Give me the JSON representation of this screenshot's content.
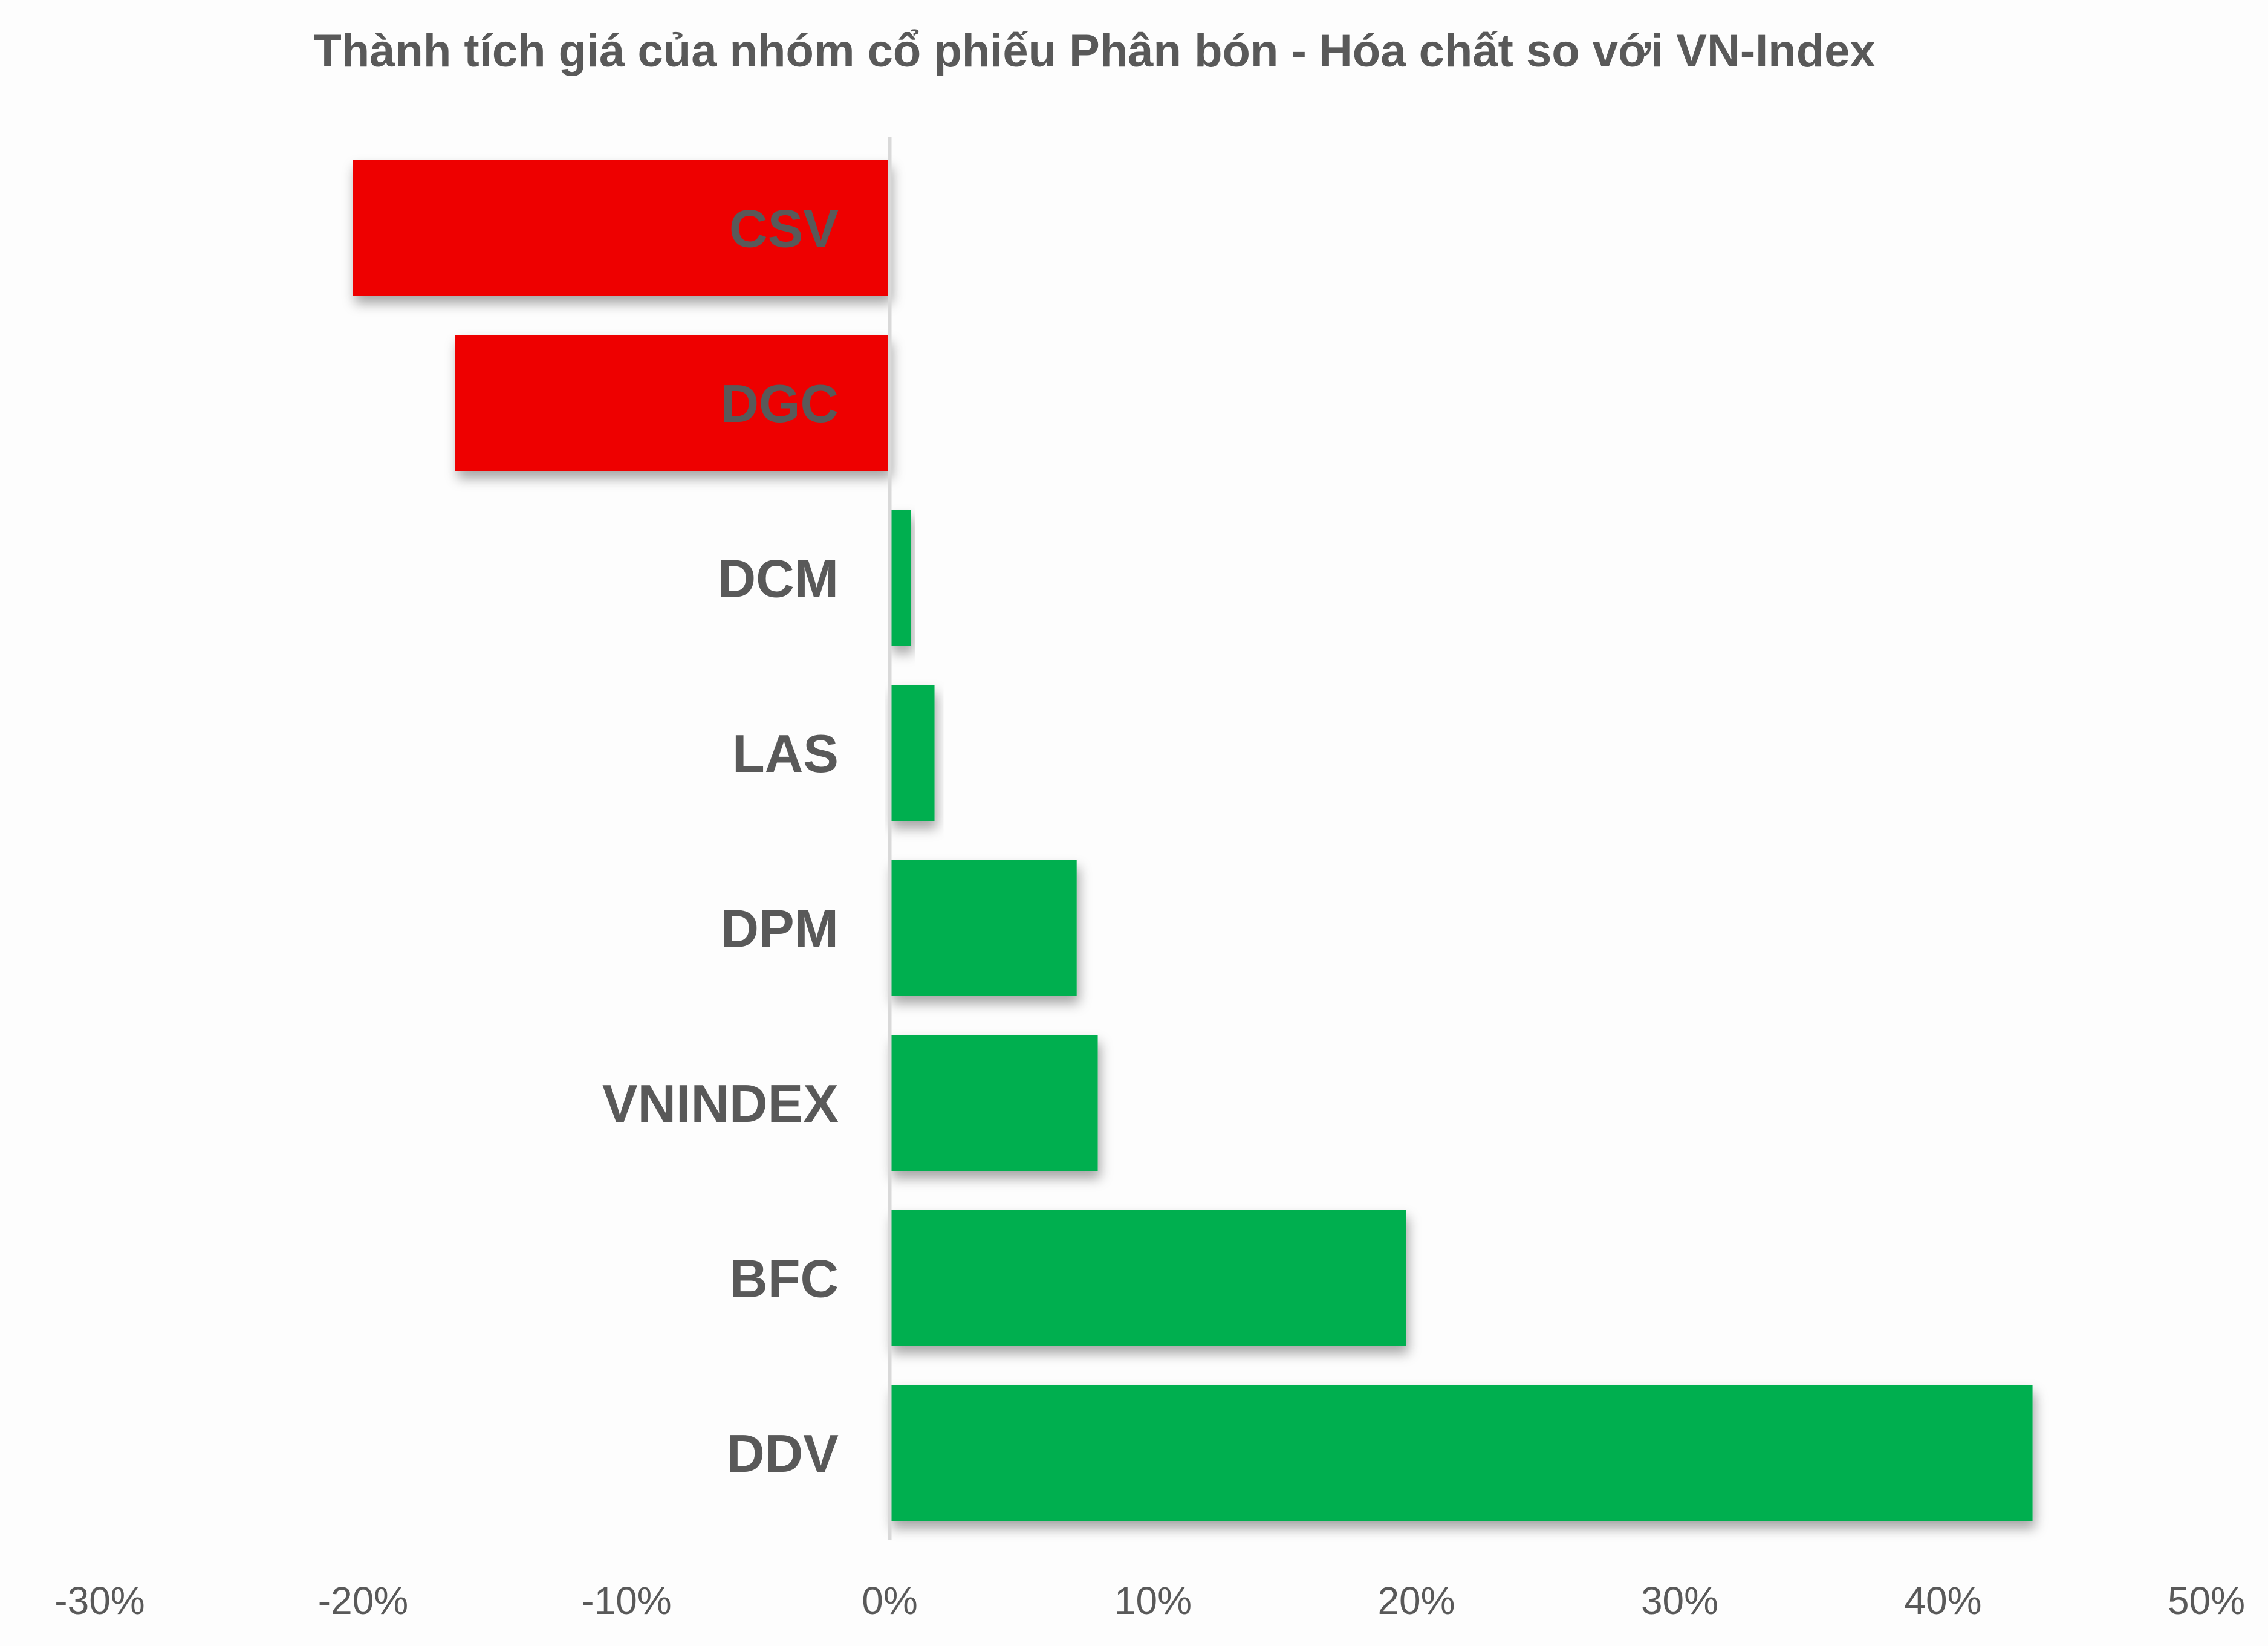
{
  "chart_data": {
    "type": "bar",
    "orientation": "horizontal",
    "title": "Thành tích giá của nhóm cổ phiếu Phân bón - Hóa chất so với VN-Index",
    "categories": [
      "CSV",
      "DGC",
      "DCM",
      "LAS",
      "DPM",
      "VNINDEX",
      "BFC",
      "DDV"
    ],
    "values": [
      -20.4,
      -16.5,
      0.8,
      1.7,
      7.1,
      7.9,
      19.6,
      43.4
    ],
    "unit": "%",
    "xlim": [
      -30,
      50
    ],
    "xticks": [
      "-30%",
      "-20%",
      "-10%",
      "0%",
      "10%",
      "20%",
      "30%",
      "40%",
      "50%"
    ],
    "xtick_values": [
      -30,
      -20,
      -10,
      0,
      10,
      20,
      30,
      40,
      50
    ],
    "grid": false,
    "legend": "none",
    "colors": {
      "negative": "#EE0000",
      "positive": "#00AF50",
      "text": "#595959",
      "axis": "#D9D9D9"
    }
  }
}
